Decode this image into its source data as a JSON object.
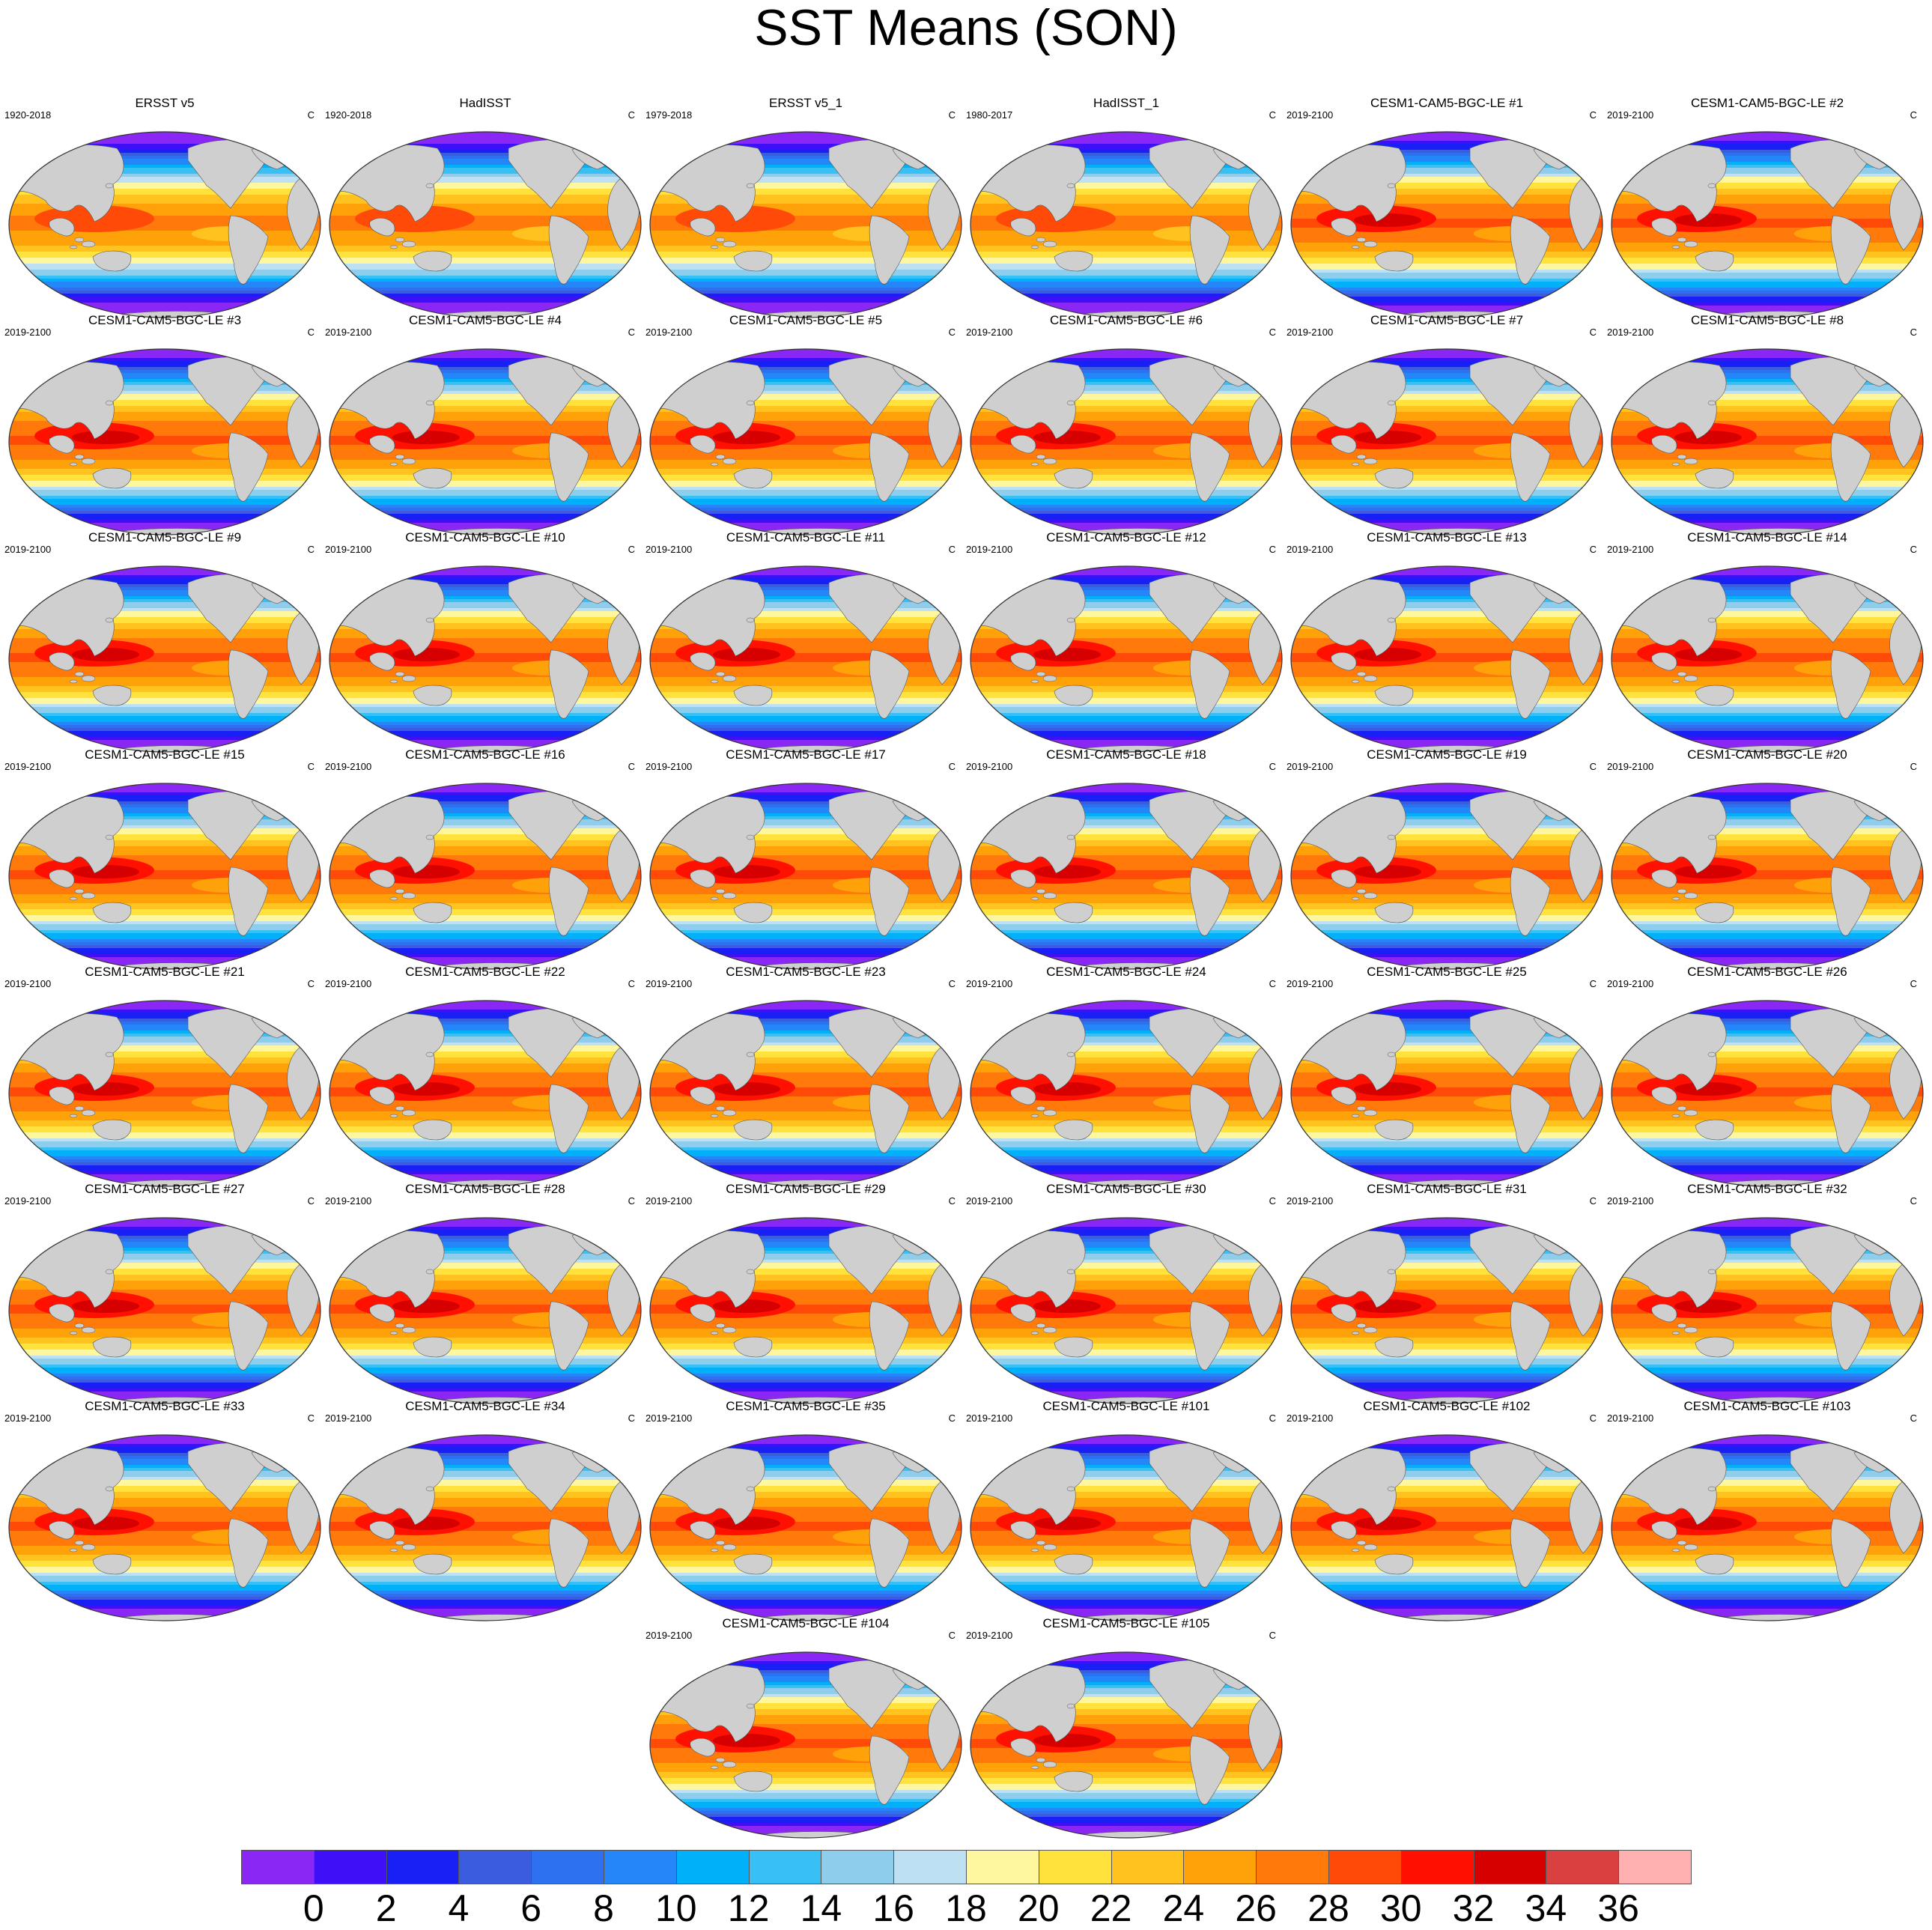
{
  "title": "SST Means (SON)",
  "unit": "C",
  "colorbar": {
    "colors": [
      "#8b27f5",
      "#3e10f8",
      "#1820f6",
      "#3c5ce0",
      "#2d70f0",
      "#2586fa",
      "#00b0f8",
      "#38c0f4",
      "#8ecdec",
      "#bde0f2",
      "#fff7a0",
      "#ffe23c",
      "#ffc21f",
      "#ffa20a",
      "#ff7a0a",
      "#ff4a08",
      "#ff1000",
      "#d60000",
      "#d94040",
      "#ffb0b0"
    ],
    "tick_labels": [
      "0",
      "2",
      "4",
      "6",
      "8",
      "10",
      "12",
      "14",
      "16",
      "18",
      "20",
      "22",
      "24",
      "26",
      "28",
      "30",
      "32",
      "34",
      "36"
    ]
  },
  "panels": [
    {
      "title": "ERSST v5",
      "years": "1920-2018"
    },
    {
      "title": "HadISST",
      "years": "1920-2018"
    },
    {
      "title": "ERSST v5_1",
      "years": "1979-2018"
    },
    {
      "title": "HadISST_1",
      "years": "1980-2017"
    },
    {
      "title": "CESM1-CAM5-BGC-LE #1",
      "years": "2019-2100"
    },
    {
      "title": "CESM1-CAM5-BGC-LE #2",
      "years": "2019-2100"
    },
    {
      "title": "CESM1-CAM5-BGC-LE #3",
      "years": "2019-2100"
    },
    {
      "title": "CESM1-CAM5-BGC-LE #4",
      "years": "2019-2100"
    },
    {
      "title": "CESM1-CAM5-BGC-LE #5",
      "years": "2019-2100"
    },
    {
      "title": "CESM1-CAM5-BGC-LE #6",
      "years": "2019-2100"
    },
    {
      "title": "CESM1-CAM5-BGC-LE #7",
      "years": "2019-2100"
    },
    {
      "title": "CESM1-CAM5-BGC-LE #8",
      "years": "2019-2100"
    },
    {
      "title": "CESM1-CAM5-BGC-LE #9",
      "years": "2019-2100"
    },
    {
      "title": "CESM1-CAM5-BGC-LE #10",
      "years": "2019-2100"
    },
    {
      "title": "CESM1-CAM5-BGC-LE #11",
      "years": "2019-2100"
    },
    {
      "title": "CESM1-CAM5-BGC-LE #12",
      "years": "2019-2100"
    },
    {
      "title": "CESM1-CAM5-BGC-LE #13",
      "years": "2019-2100"
    },
    {
      "title": "CESM1-CAM5-BGC-LE #14",
      "years": "2019-2100"
    },
    {
      "title": "CESM1-CAM5-BGC-LE #15",
      "years": "2019-2100"
    },
    {
      "title": "CESM1-CAM5-BGC-LE #16",
      "years": "2019-2100"
    },
    {
      "title": "CESM1-CAM5-BGC-LE #17",
      "years": "2019-2100"
    },
    {
      "title": "CESM1-CAM5-BGC-LE #18",
      "years": "2019-2100"
    },
    {
      "title": "CESM1-CAM5-BGC-LE #19",
      "years": "2019-2100"
    },
    {
      "title": "CESM1-CAM5-BGC-LE #20",
      "years": "2019-2100"
    },
    {
      "title": "CESM1-CAM5-BGC-LE #21",
      "years": "2019-2100"
    },
    {
      "title": "CESM1-CAM5-BGC-LE #22",
      "years": "2019-2100"
    },
    {
      "title": "CESM1-CAM5-BGC-LE #23",
      "years": "2019-2100"
    },
    {
      "title": "CESM1-CAM5-BGC-LE #24",
      "years": "2019-2100"
    },
    {
      "title": "CESM1-CAM5-BGC-LE #25",
      "years": "2019-2100"
    },
    {
      "title": "CESM1-CAM5-BGC-LE #26",
      "years": "2019-2100"
    },
    {
      "title": "CESM1-CAM5-BGC-LE #27",
      "years": "2019-2100"
    },
    {
      "title": "CESM1-CAM5-BGC-LE #28",
      "years": "2019-2100"
    },
    {
      "title": "CESM1-CAM5-BGC-LE #29",
      "years": "2019-2100"
    },
    {
      "title": "CESM1-CAM5-BGC-LE #30",
      "years": "2019-2100"
    },
    {
      "title": "CESM1-CAM5-BGC-LE #31",
      "years": "2019-2100"
    },
    {
      "title": "CESM1-CAM5-BGC-LE #32",
      "years": "2019-2100"
    },
    {
      "title": "CESM1-CAM5-BGC-LE #33",
      "years": "2019-2100"
    },
    {
      "title": "CESM1-CAM5-BGC-LE #34",
      "years": "2019-2100"
    },
    {
      "title": "CESM1-CAM5-BGC-LE #35",
      "years": "2019-2100"
    },
    {
      "title": "CESM1-CAM5-BGC-LE #101",
      "years": "2019-2100"
    },
    {
      "title": "CESM1-CAM5-BGC-LE #102",
      "years": "2019-2100"
    },
    {
      "title": "CESM1-CAM5-BGC-LE #103",
      "years": "2019-2100"
    },
    {
      "title": "CESM1-CAM5-BGC-LE #104",
      "years": "2019-2100"
    },
    {
      "title": "CESM1-CAM5-BGC-LE #105",
      "years": "2019-2100"
    }
  ]
}
